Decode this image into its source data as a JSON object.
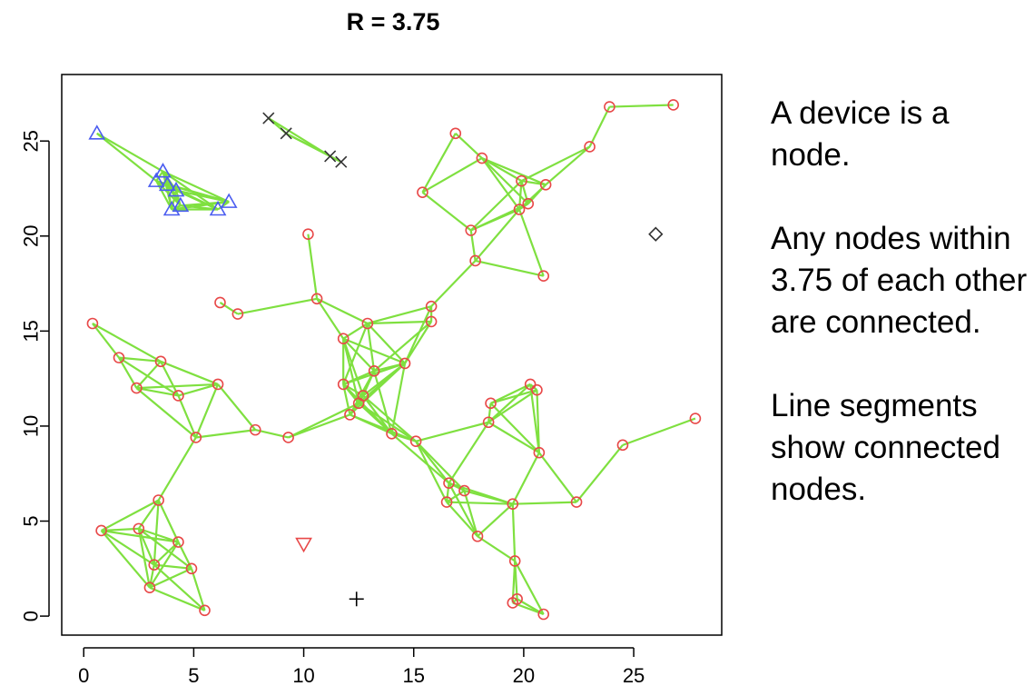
{
  "chart_data": {
    "type": "scatter",
    "title": "R  =  3.75",
    "xlabel": "",
    "ylabel": "",
    "xlim": [
      -1,
      29
    ],
    "ylim": [
      -1,
      28.5
    ],
    "x_ticks": [
      0,
      5,
      10,
      15,
      20,
      25
    ],
    "y_ticks": [
      0,
      5,
      10,
      15,
      20,
      25
    ],
    "grid": false,
    "radius": 3.75,
    "groups": [
      {
        "marker": "circle",
        "color": "#e84848",
        "points": [
          [
            0.4,
            15.4
          ],
          [
            1.6,
            13.6
          ],
          [
            2.4,
            12.0
          ],
          [
            3.5,
            13.4
          ],
          [
            4.3,
            11.6
          ],
          [
            6.1,
            12.2
          ],
          [
            5.1,
            9.4
          ],
          [
            7.8,
            9.8
          ],
          [
            9.3,
            9.4
          ],
          [
            0.8,
            4.5
          ],
          [
            2.5,
            4.6
          ],
          [
            3.4,
            6.1
          ],
          [
            3.2,
            2.7
          ],
          [
            4.3,
            3.9
          ],
          [
            3.0,
            1.5
          ],
          [
            4.9,
            2.5
          ],
          [
            5.5,
            0.3
          ],
          [
            6.2,
            16.5
          ],
          [
            7.0,
            15.9
          ],
          [
            10.2,
            20.1
          ],
          [
            10.6,
            16.7
          ],
          [
            11.8,
            14.6
          ],
          [
            12.9,
            15.4
          ],
          [
            13.2,
            12.9
          ],
          [
            11.8,
            12.2
          ],
          [
            12.1,
            10.6
          ],
          [
            12.5,
            11.2
          ],
          [
            12.7,
            11.6
          ],
          [
            14.6,
            13.3
          ],
          [
            15.8,
            16.3
          ],
          [
            15.8,
            15.5
          ],
          [
            14.0,
            9.6
          ],
          [
            15.1,
            9.2
          ],
          [
            16.6,
            7.0
          ],
          [
            16.5,
            6.0
          ],
          [
            17.3,
            6.6
          ],
          [
            17.9,
            4.2
          ],
          [
            19.5,
            5.9
          ],
          [
            22.4,
            6.0
          ],
          [
            18.4,
            10.2
          ],
          [
            18.5,
            11.2
          ],
          [
            20.3,
            12.2
          ],
          [
            20.6,
            11.9
          ],
          [
            20.7,
            8.6
          ],
          [
            19.6,
            2.9
          ],
          [
            19.5,
            0.7
          ],
          [
            19.7,
            0.9
          ],
          [
            20.9,
            0.1
          ],
          [
            24.5,
            9.0
          ],
          [
            27.8,
            10.4
          ],
          [
            15.4,
            22.3
          ],
          [
            16.9,
            25.4
          ],
          [
            17.8,
            18.7
          ],
          [
            17.6,
            20.3
          ],
          [
            18.1,
            24.1
          ],
          [
            19.9,
            22.9
          ],
          [
            20.2,
            21.7
          ],
          [
            19.8,
            21.4
          ],
          [
            20.9,
            17.9
          ],
          [
            21.0,
            22.7
          ],
          [
            23.0,
            24.7
          ],
          [
            23.9,
            26.8
          ],
          [
            26.8,
            26.9
          ]
        ]
      },
      {
        "marker": "triangle-up",
        "color": "#4a5cf0",
        "points": [
          [
            0.6,
            25.4
          ],
          [
            3.3,
            22.9
          ],
          [
            3.6,
            23.4
          ],
          [
            3.8,
            22.7
          ],
          [
            4.2,
            22.4
          ],
          [
            4.0,
            21.4
          ],
          [
            4.4,
            21.6
          ],
          [
            6.1,
            21.4
          ],
          [
            6.6,
            21.8
          ]
        ]
      },
      {
        "marker": "x",
        "color": "#333333",
        "points": [
          [
            8.4,
            26.2
          ],
          [
            9.2,
            25.4
          ],
          [
            11.2,
            24.2
          ],
          [
            11.7,
            23.9
          ]
        ]
      },
      {
        "marker": "diamond",
        "color": "#333333",
        "points": [
          [
            26.0,
            20.1
          ]
        ]
      },
      {
        "marker": "triangle-down",
        "color": "#e84848",
        "points": [
          [
            10.0,
            3.8
          ]
        ]
      },
      {
        "marker": "plus",
        "color": "#000000",
        "points": [
          [
            12.4,
            0.9
          ]
        ]
      }
    ],
    "edge_color": "#7fe040"
  },
  "notes": [
    "A device is a node.",
    "Any nodes within 3.75 of each other are connected.",
    "Line segments show connected nodes."
  ]
}
